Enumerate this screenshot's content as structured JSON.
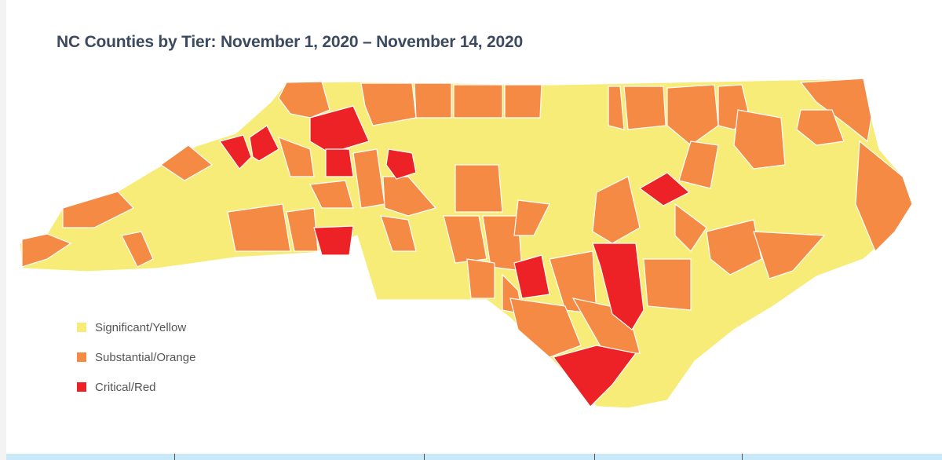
{
  "title": "NC Counties by Tier: November 1, 2020 – November 14, 2020",
  "legend": [
    {
      "label": "Significant/Yellow",
      "color": "#f7ec78"
    },
    {
      "label": "Substantial/Orange",
      "color": "#f58a45"
    },
    {
      "label": "Critical/Red",
      "color": "#ec2227"
    }
  ],
  "colors": {
    "border": "#ffffff",
    "title": "#3b4a5e",
    "bottom_bar": "#c9e8f8"
  }
}
